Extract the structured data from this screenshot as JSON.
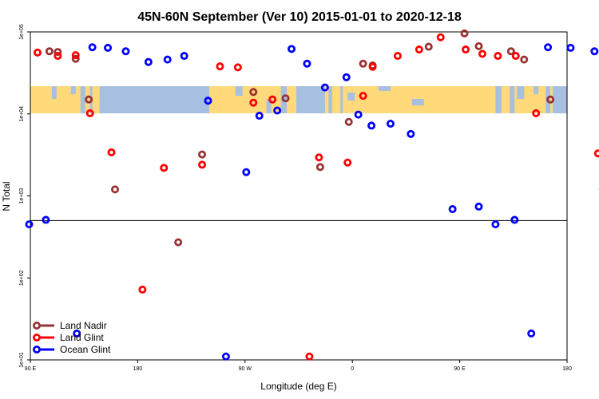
{
  "chart_data": {
    "type": "scatter",
    "title": "45N-60N September (Ver 10)   2015-01-01 to 2020-12-18",
    "xlabel": "Longitude (deg E)",
    "ylabel": "N Total",
    "xlim": [
      90,
      540
    ],
    "ylim": [
      10,
      100000
    ],
    "y_scale": "log",
    "x_ticks": [
      {
        "value": 90,
        "label": "90 E"
      },
      {
        "value": 180,
        "label": "180"
      },
      {
        "value": 270,
        "label": "90 W"
      },
      {
        "value": 360,
        "label": "0"
      },
      {
        "value": 450,
        "label": "90 E"
      },
      {
        "value": 540,
        "label": "180"
      }
    ],
    "y_ticks": [
      {
        "value": 10,
        "label": "1e+01"
      },
      {
        "value": 100,
        "label": "1e+02"
      },
      {
        "value": 1000,
        "label": "1e+03"
      },
      {
        "value": 10000,
        "label": "1e+04"
      },
      {
        "value": 100000,
        "label": "1e+05"
      }
    ],
    "reference_line_y": 500,
    "map_band": {
      "lat_range": "45N-60N",
      "land_color": "#ffd97a",
      "ocean_color": "#a7bfe0"
    },
    "legend_position": "bottom-left",
    "series": [
      {
        "name": "Land Nadir",
        "color": "#993333",
        "points": [
          [
            113,
            57000
          ],
          [
            106,
            58000
          ],
          [
            128,
            47000
          ],
          [
            139,
            15000
          ],
          [
            161,
            1200
          ],
          [
            214,
            272
          ],
          [
            234,
            3200
          ],
          [
            277,
            18500
          ],
          [
            304,
            15500
          ],
          [
            333,
            2250
          ],
          [
            357,
            8000
          ],
          [
            369,
            41000
          ],
          [
            377,
            39000
          ],
          [
            424,
            66000
          ],
          [
            454,
            96000
          ],
          [
            466,
            67000
          ],
          [
            493,
            58000
          ],
          [
            504,
            46000
          ],
          [
            526,
            15000
          ],
          [
            570,
            1200
          ]
        ]
      },
      {
        "name": "Land Glint",
        "color": "#ff0000",
        "points": [
          [
            96,
            56000
          ],
          [
            113,
            51000
          ],
          [
            128,
            52000
          ],
          [
            140,
            10200
          ],
          [
            158,
            3400
          ],
          [
            202,
            2200
          ],
          [
            184,
            72
          ],
          [
            234,
            2400
          ],
          [
            249,
            38000
          ],
          [
            264,
            37000
          ],
          [
            277,
            13700
          ],
          [
            293,
            15000
          ],
          [
            332,
            2950
          ],
          [
            324,
            11
          ],
          [
            356,
            2550
          ],
          [
            369,
            16600
          ],
          [
            377,
            37500
          ],
          [
            398,
            51000
          ],
          [
            416,
            61000
          ],
          [
            434,
            86000
          ],
          [
            455,
            61000
          ],
          [
            469,
            54000
          ],
          [
            482,
            51000
          ],
          [
            497,
            51000
          ],
          [
            514,
            10200
          ],
          [
            566,
            3300
          ]
        ]
      },
      {
        "name": "Ocean Glint",
        "color": "#0000ff",
        "points": [
          [
            89,
            450
          ],
          [
            103,
            510
          ],
          [
            129,
            21
          ],
          [
            142,
            65000
          ],
          [
            155,
            64000
          ],
          [
            170,
            58000
          ],
          [
            189,
            43000
          ],
          [
            205,
            46000
          ],
          [
            219,
            51000
          ],
          [
            239,
            14500
          ],
          [
            254,
            11
          ],
          [
            271,
            1950
          ],
          [
            282,
            9500
          ],
          [
            297,
            11000
          ],
          [
            309,
            62000
          ],
          [
            322,
            41000
          ],
          [
            337,
            21000
          ],
          [
            355,
            28000
          ],
          [
            365,
            9800
          ],
          [
            376,
            7200
          ],
          [
            392,
            7600
          ],
          [
            409,
            5700
          ],
          [
            444,
            690
          ],
          [
            466,
            740
          ],
          [
            480,
            450
          ],
          [
            496,
            510
          ],
          [
            510,
            21
          ],
          [
            524,
            65000
          ],
          [
            543,
            64000
          ],
          [
            563,
            58000
          ]
        ]
      }
    ]
  }
}
